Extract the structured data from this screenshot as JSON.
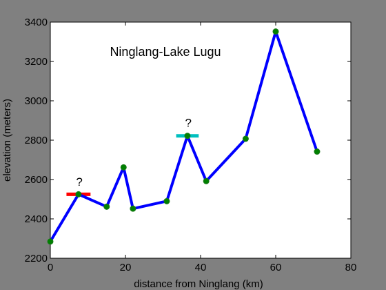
{
  "chart_data": {
    "type": "line",
    "title": "Ninglang-Lake Lugu",
    "xlabel": "distance from Ninglang (km)",
    "ylabel": "elevation (meters)",
    "xlim": [
      0,
      80
    ],
    "ylim": [
      2200,
      3400
    ],
    "xticks": [
      0,
      20,
      40,
      60,
      80
    ],
    "yticks": [
      2200,
      2400,
      2600,
      2800,
      3000,
      3200,
      3400
    ],
    "grid": false,
    "series": [
      {
        "x": [
          0,
          7.5,
          15,
          19.5,
          22,
          31,
          36.5,
          41.5,
          52,
          60,
          71
        ],
        "y": [
          2285,
          2525,
          2462,
          2662,
          2452,
          2490,
          2822,
          2592,
          2807,
          3352,
          2742
        ],
        "line_color": "#0000ff",
        "marker_color": "#008000"
      }
    ],
    "annotations": [
      {
        "text": "?",
        "x": 7,
        "y": 2590
      },
      {
        "text": "?",
        "x": 36,
        "y": 2890
      }
    ],
    "reference_marks": [
      {
        "x": [
          4.3,
          10.7
        ],
        "y": 2525,
        "color": "#ff0000"
      },
      {
        "x": [
          33.5,
          39.5
        ],
        "y": 2822,
        "color": "#00bfbf"
      }
    ]
  }
}
